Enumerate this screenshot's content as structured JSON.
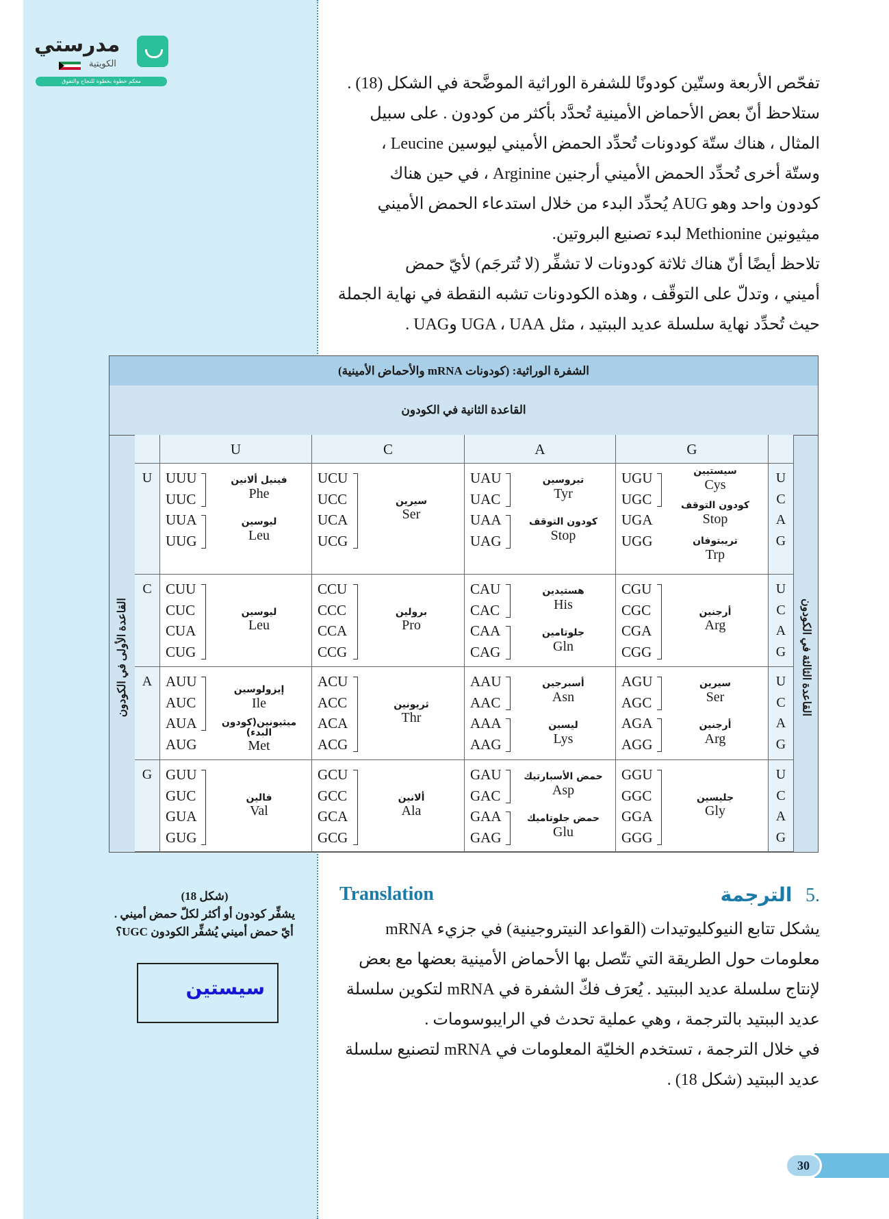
{
  "logo": {
    "name": "مدرستي",
    "sub": "الكويتية",
    "tagline": "معكم خطوة بخطوة للنجاح والتفوق"
  },
  "intro_lines": [
    "تفحّص الأربعة وستّين كودونًا للشفرة الوراثية الموضَّحة في الشكل (18) .",
    "ستلاحظ أنّ بعض الأحماض الأمينية تُحدَّد بأكثر من كودون . على سبيل",
    "المثال ، هناك ستّة كودونات تُحدِّد الحمض الأميني ليوسين Leucine ،",
    "وستّة أخرى تُحدِّد الحمض الأميني أرجنين Arginine ، في حين هناك",
    "كودون واحد وهو AUG يُحدِّد البدء من خلال استدعاء الحمض الأميني",
    "ميثيونين Methionine لبدء تصنيع البروتين.",
    "تلاحظ أيضًا أنّ هناك ثلاثة كودونات لا تشفِّر (لا تُترجَم) لأيّ حمض",
    "أميني ، وتدلّ على التوقّف ، وهذه الكودونات تشبه النقطة في نهاية الجملة",
    "حيث تُحدِّد نهاية سلسلة عديد الببتيد ، مثل UGA ، UAA وUAG ."
  ],
  "table": {
    "title": "الشفرة الوراثية: (كودونات mRNA والأحماض الأمينية)",
    "second_base_label": "القاعدة الثانية في الكودون",
    "first_base_label": "القاعدة الأولى في الكودون",
    "third_base_label": "القاعدة الثالثة في الكودون",
    "columns": [
      "U",
      "C",
      "A",
      "G"
    ],
    "third_bases": [
      "U",
      "C",
      "A",
      "G"
    ],
    "rows": [
      {
        "base": "U",
        "cells": [
          {
            "codons": [
              "UUU",
              "UUC",
              "UUA",
              "UUG"
            ],
            "groups": [
              {
                "span": [
                  0,
                  1
                ],
                "ar": "فينيل ألانين",
                "en": "Phe"
              },
              {
                "span": [
                  2,
                  3
                ],
                "ar": "ليوسين",
                "en": "Leu"
              }
            ]
          },
          {
            "codons": [
              "UCU",
              "UCC",
              "UCA",
              "UCG"
            ],
            "groups": [
              {
                "span": [
                  0,
                  3
                ],
                "ar": "سيرين",
                "en": "Ser"
              }
            ]
          },
          {
            "codons": [
              "UAU",
              "UAC",
              "UAA",
              "UAG"
            ],
            "groups": [
              {
                "span": [
                  0,
                  1
                ],
                "ar": "تيروسين",
                "en": "Tyr"
              },
              {
                "span": [
                  2,
                  3
                ],
                "ar": "كودون التوقف",
                "en": "Stop"
              }
            ]
          },
          {
            "codons": [
              "UGU",
              "UGC",
              "UGA",
              "UGG"
            ],
            "groups": [
              {
                "span": [
                  0,
                  1
                ],
                "ar": "سيستيين",
                "en": "Cys"
              },
              {
                "span": [
                  2,
                  2
                ],
                "ar": "كودون التوقف",
                "en": "Stop"
              },
              {
                "span": [
                  3,
                  3
                ],
                "ar": "تريبتوفان",
                "en": "Trp"
              }
            ]
          }
        ]
      },
      {
        "base": "C",
        "cells": [
          {
            "codons": [
              "CUU",
              "CUC",
              "CUA",
              "CUG"
            ],
            "groups": [
              {
                "span": [
                  0,
                  3
                ],
                "ar": "ليوسين",
                "en": "Leu"
              }
            ]
          },
          {
            "codons": [
              "CCU",
              "CCC",
              "CCA",
              "CCG"
            ],
            "groups": [
              {
                "span": [
                  0,
                  3
                ],
                "ar": "برولين",
                "en": "Pro"
              }
            ]
          },
          {
            "codons": [
              "CAU",
              "CAC",
              "CAA",
              "CAG"
            ],
            "groups": [
              {
                "span": [
                  0,
                  1
                ],
                "ar": "هستيدين",
                "en": "His"
              },
              {
                "span": [
                  2,
                  3
                ],
                "ar": "جلوتامين",
                "en": "Gln"
              }
            ]
          },
          {
            "codons": [
              "CGU",
              "CGC",
              "CGA",
              "CGG"
            ],
            "groups": [
              {
                "span": [
                  0,
                  3
                ],
                "ar": "أرجنين",
                "en": "Arg"
              }
            ]
          }
        ]
      },
      {
        "base": "A",
        "cells": [
          {
            "codons": [
              "AUU",
              "AUC",
              "AUA",
              "AUG"
            ],
            "groups": [
              {
                "span": [
                  0,
                  2
                ],
                "ar": "إيزولوسين",
                "en": "Ile"
              },
              {
                "span": [
                  3,
                  3
                ],
                "ar": "ميثيونين(كودون البدء)",
                "en": "Met"
              }
            ]
          },
          {
            "codons": [
              "ACU",
              "ACC",
              "ACA",
              "ACG"
            ],
            "groups": [
              {
                "span": [
                  0,
                  3
                ],
                "ar": "ثريونين",
                "en": "Thr"
              }
            ]
          },
          {
            "codons": [
              "AAU",
              "AAC",
              "AAA",
              "AAG"
            ],
            "groups": [
              {
                "span": [
                  0,
                  1
                ],
                "ar": "أسبرجين",
                "en": "Asn"
              },
              {
                "span": [
                  2,
                  3
                ],
                "ar": "ليسين",
                "en": "Lys"
              }
            ]
          },
          {
            "codons": [
              "AGU",
              "AGC",
              "AGA",
              "AGG"
            ],
            "groups": [
              {
                "span": [
                  0,
                  1
                ],
                "ar": "سيرين",
                "en": "Ser"
              },
              {
                "span": [
                  2,
                  3
                ],
                "ar": "أرجنين",
                "en": "Arg"
              }
            ]
          }
        ]
      },
      {
        "base": "G",
        "cells": [
          {
            "codons": [
              "GUU",
              "GUC",
              "GUA",
              "GUG"
            ],
            "groups": [
              {
                "span": [
                  0,
                  3
                ],
                "ar": "فالين",
                "en": "Val"
              }
            ]
          },
          {
            "codons": [
              "GCU",
              "GCC",
              "GCA",
              "GCG"
            ],
            "groups": [
              {
                "span": [
                  0,
                  3
                ],
                "ar": "ألانين",
                "en": "Ala"
              }
            ]
          },
          {
            "codons": [
              "GAU",
              "GAC",
              "GAA",
              "GAG"
            ],
            "groups": [
              {
                "span": [
                  0,
                  1
                ],
                "ar": "حمض الأسبارتيك",
                "en": "Asp"
              },
              {
                "span": [
                  2,
                  3
                ],
                "ar": "حمض جلوتاميك",
                "en": "Glu"
              }
            ]
          },
          {
            "codons": [
              "GGU",
              "GGC",
              "GGA",
              "GGG"
            ],
            "groups": [
              {
                "span": [
                  0,
                  3
                ],
                "ar": "جليسين",
                "en": "Gly"
              }
            ]
          }
        ]
      }
    ]
  },
  "section": {
    "number": ".5",
    "title_ar": "الترجمة",
    "title_en": "Translation"
  },
  "translation_lines": [
    "يشكل تتابع النيوكليوتيدات (القواعد النيتروجينية) في جزيء mRNA",
    "معلومات حول الطريقة التي تتّصل بها الأحماض الأمينية بعضها مع بعض",
    "لإنتاج سلسلة عديد الببتيد . يُعرَف فكّ الشفرة في mRNA لتكوين سلسلة",
    "عديد الببتيد بالترجمة ، وهي عملية تحدث في الرايبوسومات .",
    "في خلال الترجمة ، تستخدم الخليّة المعلومات في mRNA لتصنيع سلسلة",
    "عديد الببتيد (شكل 18) ."
  ],
  "caption": {
    "title": "(شكل 18)",
    "line1": "يشفِّر كودون أو أكثر لكلّ حمض أميني .",
    "line2": "أيّ حمض أميني يُشفِّر الكودون UGC؟"
  },
  "answer": "سيستين",
  "page_number": "30",
  "colors": {
    "sidebar": "#d4eef9",
    "heading": "#1b7ba8",
    "answer": "#1515d6",
    "table_header": "#a9cfe8"
  }
}
